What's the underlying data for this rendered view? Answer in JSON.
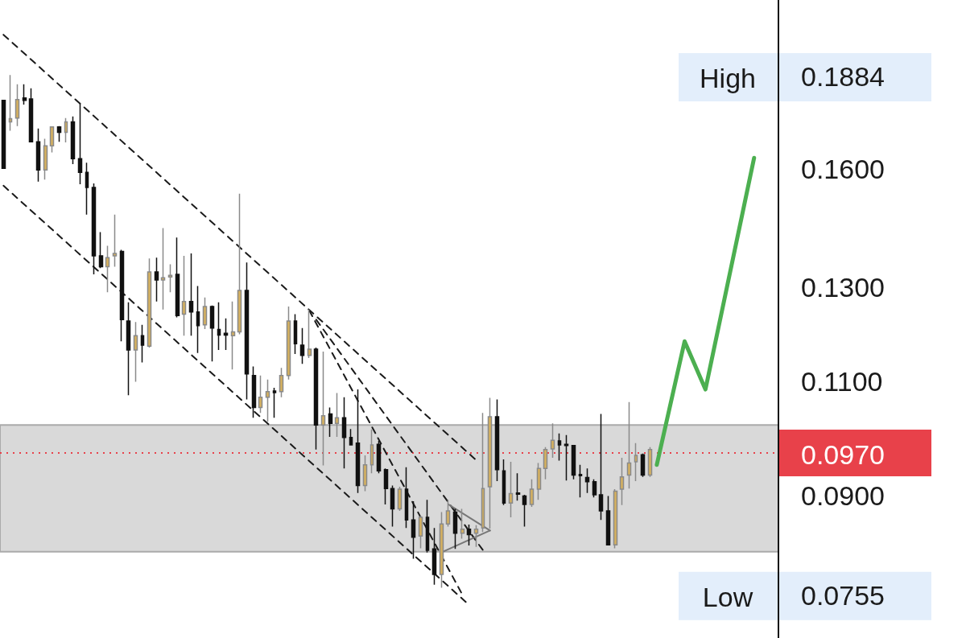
{
  "chart_data": {
    "type": "candlestick",
    "log": "y",
    "tick_labels": "y",
    "categories": [
      null,
      null,
      null,
      null,
      null,
      null,
      null,
      null,
      null,
      null,
      null,
      null,
      null,
      null,
      null,
      null,
      null,
      null,
      null,
      null,
      null,
      null,
      null,
      null,
      null,
      null,
      null,
      null,
      null,
      null,
      null,
      null,
      null,
      null,
      null,
      null,
      null,
      null,
      null,
      null,
      null,
      null,
      null,
      null,
      null,
      null,
      null,
      null,
      null,
      null,
      null,
      null,
      null,
      null,
      null,
      null,
      null,
      null,
      null,
      null,
      null,
      null,
      null,
      null,
      null,
      null,
      null,
      null,
      null,
      null,
      null,
      null,
      null,
      null,
      null,
      null,
      null,
      null,
      null,
      null,
      null,
      null,
      null,
      null,
      null,
      null,
      null,
      null,
      null,
      null,
      null,
      null,
      null,
      null,
      null,
      null,
      null,
      null,
      null,
      null,
      null,
      null,
      null,
      null,
      null,
      null,
      null,
      null,
      null,
      null,
      null,
      null
    ],
    "ohlc": [
      [
        0.1806,
        0.1806,
        0.1602,
        0.1602
      ],
      [
        0.1739,
        0.1889,
        0.1712,
        0.1749
      ],
      [
        0.1751,
        0.1858,
        0.1726,
        0.1809
      ],
      [
        0.1814,
        0.1858,
        0.1793,
        0.1806
      ],
      [
        0.1811,
        0.1845,
        0.1677,
        0.1679
      ],
      [
        0.1679,
        0.1719,
        0.1565,
        0.1598
      ],
      [
        0.1598,
        0.1688,
        0.1571,
        0.1667
      ],
      [
        0.1667,
        0.1724,
        0.1648,
        0.1724
      ],
      [
        0.1724,
        0.1726,
        0.1679,
        0.1707
      ],
      [
        0.1707,
        0.1751,
        0.1677,
        0.1739
      ],
      [
        0.1739,
        0.1756,
        0.1614,
        0.163
      ],
      [
        0.163,
        0.1796,
        0.1558,
        0.1591
      ],
      [
        0.1591,
        0.1618,
        0.1477,
        0.1549
      ],
      [
        0.1549,
        0.156,
        0.1329,
        0.1373
      ],
      [
        0.1373,
        0.1432,
        0.1344,
        0.1347
      ],
      [
        0.1347,
        0.1398,
        0.1288,
        0.1369
      ],
      [
        0.1373,
        0.1477,
        0.1347,
        0.1379
      ],
      [
        0.1384,
        0.1388,
        0.1181,
        0.1227
      ],
      [
        0.1224,
        0.1265,
        0.1074,
        0.1163
      ],
      [
        0.1163,
        0.1222,
        0.11,
        0.1193
      ],
      [
        0.1193,
        0.1216,
        0.1138,
        0.1173
      ],
      [
        0.1171,
        0.1367,
        0.1168,
        0.1335
      ],
      [
        0.1335,
        0.1369,
        0.1267,
        0.1316
      ],
      [
        0.1316,
        0.1442,
        0.1249,
        0.1321
      ],
      [
        0.1323,
        0.1353,
        0.1288,
        0.1327
      ],
      [
        0.1329,
        0.1418,
        0.1232,
        0.1236
      ],
      [
        0.1239,
        0.1373,
        0.1193,
        0.1267
      ],
      [
        0.1267,
        0.1379,
        0.1193,
        0.1244
      ],
      [
        0.1244,
        0.1302,
        0.1157,
        0.1214
      ],
      [
        0.1216,
        0.1276,
        0.1207,
        0.1256
      ],
      [
        0.1256,
        0.1258,
        0.114,
        0.1209
      ],
      [
        0.1206,
        0.1265,
        0.1163,
        0.1194
      ],
      [
        0.1198,
        0.123,
        0.1163,
        0.1194
      ],
      [
        0.1193,
        0.1267,
        0.1124,
        0.1201
      ],
      [
        0.1201,
        0.1532,
        0.1196,
        0.1292
      ],
      [
        0.1292,
        0.1357,
        0.1066,
        0.1115
      ],
      [
        0.1112,
        0.113,
        0.1032,
        0.1051
      ],
      [
        0.1051,
        0.1112,
        0.1041,
        0.107
      ],
      [
        0.107,
        0.1104,
        0.1025,
        0.1081
      ],
      [
        0.1082,
        0.1088,
        0.1032,
        0.1079
      ],
      [
        0.1081,
        0.1127,
        0.107,
        0.1112
      ],
      [
        0.1112,
        0.1256,
        0.1104,
        0.1224
      ],
      [
        0.1224,
        0.1239,
        0.1155,
        0.1176
      ],
      [
        0.1173,
        0.1209,
        0.1135,
        0.1152
      ],
      [
        0.1152,
        0.1249,
        0.1147,
        0.1165
      ],
      [
        0.1165,
        0.1168,
        0.0976,
        0.1019
      ],
      [
        0.1019,
        0.116,
        0.0949,
        0.1036
      ],
      [
        0.1039,
        0.1051,
        0.0998,
        0.1022
      ],
      [
        0.1022,
        0.1078,
        0.0998,
        0.1032
      ],
      [
        0.1032,
        0.107,
        0.0944,
        0.0997
      ],
      [
        0.0997,
        0.1012,
        0.0983,
        0.0984
      ],
      [
        0.0987,
        0.1085,
        0.0904,
        0.0916
      ],
      [
        0.0916,
        0.0966,
        0.0907,
        0.095
      ],
      [
        0.095,
        0.1011,
        0.0936,
        0.0984
      ],
      [
        0.0985,
        0.0991,
        0.0936,
        0.094
      ],
      [
        0.0942,
        0.0944,
        0.0886,
        0.0911
      ],
      [
        0.0911,
        0.0916,
        0.0852,
        0.0879
      ],
      [
        0.0879,
        0.0914,
        0.0876,
        0.091
      ],
      [
        0.091,
        0.0946,
        0.085,
        0.0862
      ],
      [
        0.0862,
        0.0891,
        0.0805,
        0.0836
      ],
      [
        0.0838,
        0.0868,
        0.082,
        0.0866
      ],
      [
        0.0866,
        0.0893,
        0.0814,
        0.0817
      ],
      [
        0.0819,
        0.085,
        0.0769,
        0.0783
      ],
      [
        0.0783,
        0.0874,
        0.0765,
        0.0856
      ],
      [
        0.0856,
        0.0893,
        0.0852,
        0.0876
      ],
      [
        0.0874,
        0.0879,
        0.0819,
        0.0842
      ],
      [
        0.0842,
        0.0879,
        0.0834,
        0.0848
      ],
      [
        0.0848,
        0.0855,
        0.0824,
        0.084
      ],
      [
        0.0842,
        0.0854,
        0.0822,
        0.0848
      ],
      [
        0.085,
        0.1041,
        0.0844,
        0.0911
      ],
      [
        0.0914,
        0.1069,
        0.0849,
        0.1034
      ],
      [
        0.1034,
        0.1066,
        0.0923,
        0.0942
      ],
      [
        0.094,
        0.0959,
        0.0885,
        0.0888
      ],
      [
        0.0888,
        0.0955,
        0.0866,
        0.0903
      ],
      [
        0.0904,
        0.0936,
        0.0892,
        0.0902
      ],
      [
        0.0899,
        0.0901,
        0.0852,
        0.0886
      ],
      [
        0.0886,
        0.0926,
        0.0882,
        0.091
      ],
      [
        0.091,
        0.0953,
        0.0893,
        0.0944
      ],
      [
        0.0944,
        0.098,
        0.0926,
        0.0976
      ],
      [
        0.0977,
        0.1022,
        0.0962,
        0.0992
      ],
      [
        0.0991,
        0.1004,
        0.0957,
        0.0984
      ],
      [
        0.0985,
        0.1001,
        0.0924,
        0.0983
      ],
      [
        0.0983,
        0.0983,
        0.0926,
        0.0933
      ],
      [
        0.0934,
        0.095,
        0.0897,
        0.0932
      ],
      [
        0.0929,
        0.0944,
        0.0904,
        0.0922
      ],
      [
        0.0922,
        0.0926,
        0.0897,
        0.0901
      ],
      [
        0.0901,
        0.1039,
        0.0862,
        0.0876
      ],
      [
        0.0876,
        0.0899,
        0.0824,
        0.0825
      ],
      [
        0.0825,
        0.091,
        0.082,
        0.0907
      ],
      [
        0.091,
        0.0962,
        0.0885,
        0.093
      ],
      [
        0.0933,
        0.1061,
        0.0911,
        0.0953
      ],
      [
        0.0955,
        0.0987,
        0.0923,
        0.0966
      ],
      [
        0.0967,
        0.0969,
        0.093,
        0.0933
      ],
      [
        0.0933,
        0.098,
        0.093,
        0.0976
      ],
      null,
      null,
      null,
      null,
      null,
      null,
      null,
      null,
      null,
      null,
      null,
      null,
      null,
      null,
      null,
      null,
      null,
      null
    ],
    "series": [
      {
        "type": "line",
        "color": "#1a1a1a",
        "line_style": "dashed",
        "values": [
          0.2028,
          null,
          null,
          null,
          null,
          null,
          null,
          null,
          null,
          null,
          null,
          null,
          null,
          null,
          null,
          null,
          null,
          null,
          null,
          null,
          null,
          null,
          null,
          null,
          null,
          null,
          null,
          null,
          null,
          null,
          null,
          null,
          null,
          null,
          null,
          null,
          null,
          null,
          null,
          null,
          null,
          null,
          null,
          null,
          null,
          null,
          null,
          null,
          null,
          null,
          null,
          null,
          null,
          null,
          null,
          null,
          null,
          null,
          null,
          null,
          null,
          null,
          null,
          null,
          null,
          null,
          null,
          null,
          0.0958,
          null,
          null,
          null,
          null,
          null,
          null,
          null,
          null,
          null,
          null,
          null,
          null,
          null,
          null,
          null,
          null,
          null,
          null,
          null,
          null,
          null,
          null,
          null,
          null,
          null,
          null,
          null,
          null,
          null,
          null,
          null,
          null,
          null,
          null,
          null,
          null,
          null,
          null,
          null,
          null,
          null,
          null,
          null
        ]
      },
      {
        "type": "line",
        "color": "#1a1a1a",
        "line_style": "dashed",
        "values": [
          0.1554,
          null,
          null,
          null,
          null,
          null,
          null,
          null,
          null,
          null,
          null,
          null,
          null,
          null,
          null,
          null,
          null,
          null,
          null,
          null,
          null,
          null,
          null,
          null,
          null,
          null,
          null,
          null,
          null,
          null,
          null,
          null,
          null,
          null,
          null,
          null,
          null,
          null,
          null,
          null,
          null,
          null,
          null,
          null,
          null,
          null,
          null,
          null,
          null,
          null,
          null,
          null,
          null,
          null,
          null,
          null,
          null,
          null,
          null,
          null,
          null,
          null,
          null,
          null,
          null,
          null,
          null,
          0.0742,
          null,
          null,
          null,
          null,
          null,
          null,
          null,
          null,
          null,
          null,
          null,
          null,
          null,
          null,
          null,
          null,
          null,
          null,
          null,
          null,
          null,
          null,
          null,
          null,
          null,
          null,
          null,
          null,
          null,
          null,
          null,
          null,
          null,
          null,
          null,
          null,
          null,
          null,
          null,
          null,
          null,
          null,
          null,
          null
        ]
      },
      {
        "type": "line",
        "color": "#1a1a1a",
        "line_style": "dashed",
        "values": [
          null,
          null,
          null,
          null,
          null,
          null,
          null,
          null,
          null,
          null,
          null,
          null,
          null,
          null,
          null,
          null,
          null,
          null,
          null,
          null,
          null,
          null,
          null,
          null,
          null,
          null,
          null,
          null,
          null,
          null,
          null,
          null,
          null,
          null,
          null,
          null,
          null,
          null,
          null,
          null,
          null,
          null,
          null,
          null,
          0.1247,
          null,
          null,
          null,
          null,
          null,
          null,
          null,
          null,
          null,
          null,
          null,
          null,
          null,
          null,
          null,
          null,
          null,
          null,
          null,
          null,
          null,
          0.0756,
          null,
          null,
          null,
          null,
          null,
          null,
          null,
          null,
          null,
          null,
          null,
          null,
          null,
          null,
          null,
          null,
          null,
          null,
          null,
          null,
          null,
          null,
          null,
          null,
          null,
          null,
          null,
          null,
          null,
          null,
          null,
          null,
          null,
          null,
          null,
          null,
          null,
          null,
          null,
          null,
          null,
          null,
          null,
          null,
          null
        ]
      },
      {
        "type": "line",
        "color": "#1a1a1a",
        "line_style": "dashed",
        "values": [
          null,
          null,
          null,
          null,
          null,
          null,
          null,
          null,
          null,
          null,
          null,
          null,
          null,
          null,
          null,
          null,
          null,
          null,
          null,
          null,
          null,
          null,
          null,
          null,
          null,
          null,
          null,
          null,
          null,
          null,
          null,
          null,
          null,
          null,
          null,
          null,
          null,
          null,
          null,
          null,
          null,
          null,
          null,
          null,
          null,
          0.1227,
          null,
          null,
          null,
          null,
          null,
          null,
          null,
          null,
          null,
          null,
          null,
          null,
          null,
          null,
          null,
          null,
          null,
          null,
          null,
          null,
          null,
          null,
          null,
          0.0817,
          null,
          null,
          null,
          null,
          null,
          null,
          null,
          null,
          null,
          null,
          null,
          null,
          null,
          null,
          null,
          null,
          null,
          null,
          null,
          null,
          null,
          null,
          null,
          null,
          null,
          null,
          null,
          null,
          null,
          null,
          null,
          null,
          null,
          null,
          null,
          null,
          null,
          null,
          null,
          null,
          null,
          null
        ]
      },
      {
        "type": "line",
        "color": "#777777",
        "line_style": "solid",
        "values": [
          null,
          null,
          null,
          null,
          null,
          null,
          null,
          null,
          null,
          null,
          null,
          null,
          null,
          null,
          null,
          null,
          null,
          null,
          null,
          null,
          null,
          null,
          null,
          null,
          null,
          null,
          null,
          null,
          null,
          null,
          null,
          null,
          null,
          null,
          null,
          null,
          null,
          null,
          null,
          null,
          null,
          null,
          null,
          null,
          null,
          null,
          null,
          null,
          null,
          null,
          null,
          null,
          null,
          null,
          null,
          null,
          null,
          null,
          null,
          null,
          null,
          null,
          null,
          null,
          0.0886,
          null,
          null,
          null,
          null,
          null,
          0.0846,
          null,
          null,
          null,
          null,
          null,
          null,
          null,
          null,
          null,
          null,
          null,
          null,
          null,
          null,
          null,
          null,
          null,
          null,
          null,
          null,
          null,
          null,
          null,
          null,
          null,
          null,
          null,
          null,
          null,
          null,
          null,
          null,
          null,
          null,
          null,
          null,
          null,
          null,
          null,
          null,
          null
        ]
      },
      {
        "type": "line",
        "color": "#777777",
        "line_style": "solid",
        "values": [
          null,
          null,
          null,
          null,
          null,
          null,
          null,
          null,
          null,
          null,
          null,
          null,
          null,
          null,
          null,
          null,
          null,
          null,
          null,
          null,
          null,
          null,
          null,
          null,
          null,
          null,
          null,
          null,
          null,
          null,
          null,
          null,
          null,
          null,
          null,
          null,
          null,
          null,
          null,
          null,
          null,
          null,
          null,
          null,
          null,
          null,
          null,
          null,
          null,
          null,
          null,
          null,
          null,
          null,
          null,
          null,
          null,
          null,
          null,
          null,
          null,
          null,
          null,
          0.0814,
          null,
          null,
          null,
          null,
          null,
          null,
          0.0846,
          null,
          null,
          null,
          null,
          null,
          null,
          null,
          null,
          null,
          null,
          null,
          null,
          null,
          null,
          null,
          null,
          null,
          null,
          null,
          null,
          null,
          null,
          null,
          null,
          null,
          null,
          null,
          null,
          null,
          null,
          null,
          null,
          null,
          null,
          null,
          null,
          null,
          null,
          null,
          null,
          null
        ]
      },
      {
        "type": "line",
        "color": "#4caf50",
        "line_style": "solid",
        "values": [
          null,
          null,
          null,
          null,
          null,
          null,
          null,
          null,
          null,
          null,
          null,
          null,
          null,
          null,
          null,
          null,
          null,
          null,
          null,
          null,
          null,
          null,
          null,
          null,
          null,
          null,
          null,
          null,
          null,
          null,
          null,
          null,
          null,
          null,
          null,
          null,
          null,
          null,
          null,
          null,
          null,
          null,
          null,
          null,
          null,
          null,
          null,
          null,
          null,
          null,
          null,
          null,
          null,
          null,
          null,
          null,
          null,
          null,
          null,
          null,
          null,
          null,
          null,
          null,
          null,
          null,
          null,
          null,
          null,
          null,
          null,
          null,
          null,
          null,
          null,
          null,
          null,
          null,
          null,
          null,
          null,
          null,
          null,
          null,
          null,
          null,
          null,
          null,
          null,
          null,
          null,
          null,
          null,
          null,
          0.095,
          null,
          null,
          null,
          0.1181,
          null,
          null,
          0.1085,
          null,
          null,
          null,
          null,
          null,
          null,
          0.1632,
          null,
          null,
          null
        ]
      }
    ],
    "ylim": [
      0.07,
      0.2156
    ],
    "yticks": [
      {
        "value": 0.0755,
        "label": "0.0755"
      },
      {
        "value": 0.09,
        "label": "0.0900"
      },
      {
        "value": 0.11,
        "label": "0.1100"
      },
      {
        "value": 0.13,
        "label": "0.1300"
      },
      {
        "value": 0.16,
        "label": "0.1600"
      },
      {
        "value": 0.1884,
        "label": "0.1884"
      }
    ],
    "ref_lines": [
      {
        "axis": "y",
        "value": 0.097,
        "label": "0.0970",
        "color": "#e8414a",
        "line_style": "dotted"
      }
    ],
    "bands": [
      {
        "axis": "y",
        "from": 0.0815,
        "to": 0.1019,
        "color": "#d9d9d9"
      }
    ],
    "annotations": [
      "High",
      "Low"
    ]
  }
}
